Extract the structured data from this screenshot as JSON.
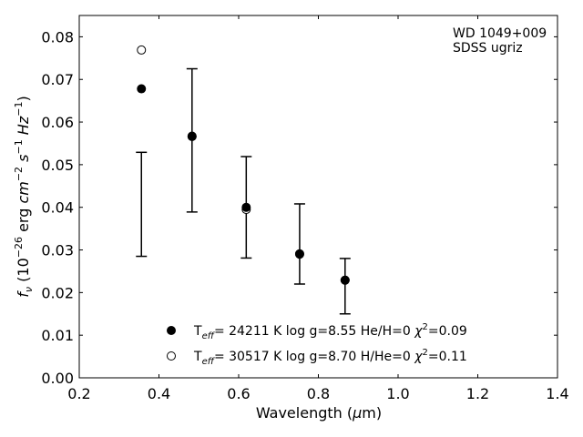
{
  "chart_data": {
    "type": "scatter",
    "title": "",
    "xlabel": "Wavelength (μm)",
    "ylabel": "f_ν (10^-26 erg cm^-2 s^-1 Hz^-1)",
    "xlim": [
      0.2,
      1.4
    ],
    "ylim": [
      0.0,
      0.085
    ],
    "x_ticks": [
      "0.2",
      "0.4",
      "0.6",
      "0.8",
      "1.0",
      "1.2",
      "1.4"
    ],
    "y_ticks": [
      "0.00",
      "0.01",
      "0.02",
      "0.03",
      "0.04",
      "0.05",
      "0.06",
      "0.07",
      "0.08"
    ],
    "annotation": [
      "WD 1049+009",
      "SDSS ugriz"
    ],
    "observed": {
      "x": [
        0.356,
        0.483,
        0.619,
        0.753,
        0.867
      ],
      "y": [
        0.0407,
        0.0557,
        0.04,
        0.0314,
        0.0215
      ],
      "yerr": [
        0.0122,
        0.0168,
        0.0119,
        0.0094,
        0.0065
      ]
    },
    "series": [
      {
        "name": "T_eff= 24211 K  log g=8.55  He/H=0  χ²=0.09",
        "marker": "filled-circle",
        "x": [
          0.356,
          0.483,
          0.619,
          0.753,
          0.867
        ],
        "y": [
          0.0678,
          0.0566,
          0.04,
          0.029,
          0.0229
        ]
      },
      {
        "name": "T_eff= 30517 K  log g=8.70  H/He=0  χ²=0.11",
        "marker": "open-circle",
        "x": [
          0.356,
          0.483,
          0.619,
          0.753,
          0.867
        ],
        "y": [
          0.0769,
          0.0567,
          0.0395,
          0.0291,
          0.0229
        ]
      }
    ],
    "legend_position": "bottom-center",
    "grid": false
  }
}
